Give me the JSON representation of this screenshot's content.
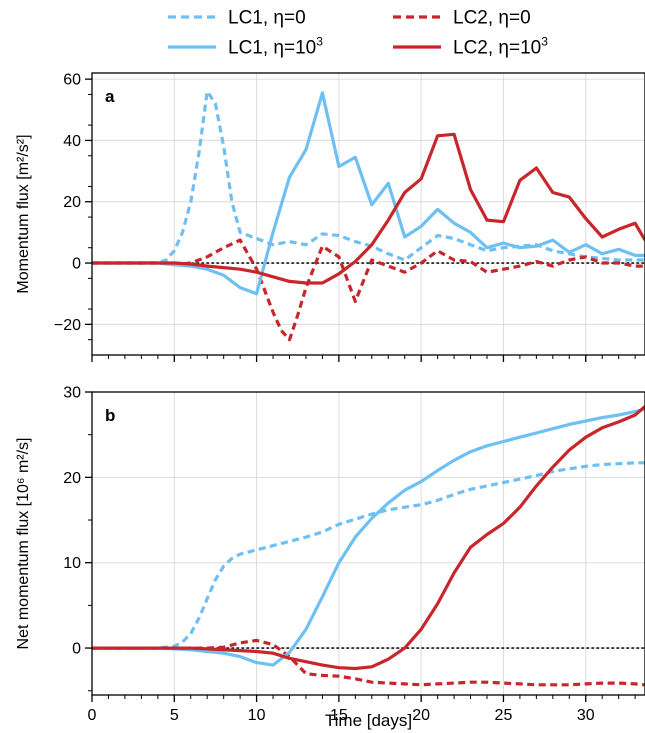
{
  "legend": {
    "entries": [
      {
        "label": "LC1, η=0",
        "color": "#6ec0f3",
        "dash": true
      },
      {
        "label": "LC2, η=0",
        "color": "#c8262b",
        "dash": true
      },
      {
        "label": "LC1, η=10",
        "sup": "3",
        "color": "#6ec0f3",
        "dash": false
      },
      {
        "label": "LC2, η=10",
        "sup": "3",
        "color": "#c8262b",
        "dash": false
      }
    ]
  },
  "xlabel": "Time [days]",
  "chart_data": [
    {
      "type": "line",
      "panel_label": "a",
      "ylabel": "Momentum flux [m²/s²]",
      "xlim": [
        0,
        33.6
      ],
      "ylim": [
        -30,
        62
      ],
      "xticks": [
        "0",
        "5",
        "10",
        "15",
        "20",
        "25",
        "30"
      ],
      "yticks": [
        "−20",
        "0",
        "20",
        "40",
        "60"
      ],
      "ytick_values": [
        -20,
        0,
        20,
        40,
        60
      ],
      "grid": true,
      "zero_line": true,
      "series": [
        {
          "name": "LC1, η=0",
          "color": "#6ec0f3",
          "dash": true,
          "x": [
            0,
            1,
            2,
            3,
            4,
            4.5,
            5,
            5.5,
            6,
            6.5,
            7,
            7.5,
            8,
            8.5,
            9,
            10,
            11,
            12,
            13,
            14,
            15,
            16,
            17,
            18,
            19,
            20,
            21,
            22,
            23,
            24,
            25,
            26,
            27,
            28,
            29,
            30,
            31,
            32,
            33,
            33.6
          ],
          "y": [
            0,
            0,
            0,
            0,
            0,
            1,
            4,
            10,
            20,
            36,
            56,
            52,
            38,
            20,
            10,
            8,
            6,
            7,
            6,
            9.5,
            9,
            7,
            5.5,
            3,
            1,
            5,
            9,
            8,
            6,
            4,
            5,
            5.5,
            6,
            4,
            3,
            2,
            1.5,
            1,
            1,
            1
          ]
        },
        {
          "name": "LC2, η=0",
          "color": "#c8262b",
          "dash": true,
          "x": [
            0,
            1,
            2,
            3,
            4,
            5,
            6,
            7,
            8,
            9,
            10,
            11,
            11.5,
            12,
            12.5,
            13,
            14,
            15,
            16,
            17,
            18,
            19,
            20,
            21,
            22,
            23,
            24,
            25,
            26,
            27,
            28,
            29,
            30,
            31,
            32,
            33,
            33.6
          ],
          "y": [
            0,
            0,
            0,
            0,
            0,
            -0.5,
            0,
            2,
            5,
            7.5,
            -2,
            -16,
            -22,
            -25,
            -17,
            -8,
            5.5,
            2,
            -12.5,
            1,
            -1,
            -3,
            0,
            4,
            1,
            0.5,
            -3,
            -2,
            -1,
            0.5,
            -1,
            1,
            2,
            0,
            0,
            -1,
            -1
          ]
        },
        {
          "name": "LC1, η=10³",
          "color": "#6ec0f3",
          "dash": false,
          "x": [
            0,
            1,
            2,
            3,
            4,
            5,
            6,
            7,
            8,
            9,
            10,
            11,
            12,
            13,
            14,
            15,
            16,
            17,
            18,
            19,
            20,
            21,
            22,
            23,
            24,
            25,
            26,
            27,
            28,
            29,
            30,
            31,
            32,
            33,
            33.6
          ],
          "y": [
            0,
            0,
            0,
            0,
            0,
            -0.5,
            -1,
            -2,
            -4,
            -8,
            -10,
            10,
            28,
            37,
            55.5,
            31.5,
            34.5,
            19,
            26,
            8.5,
            12,
            17.5,
            13,
            10,
            5,
            6.5,
            5,
            5.5,
            7.5,
            3.5,
            6,
            3,
            4.5,
            2.5,
            2.5
          ]
        },
        {
          "name": "LC2, η=10³",
          "color": "#c8262b",
          "dash": false,
          "x": [
            0,
            1,
            2,
            3,
            4,
            5,
            6,
            7,
            8,
            9,
            10,
            11,
            12,
            13,
            14,
            15,
            16,
            17,
            18,
            19,
            20,
            21,
            22,
            23,
            24,
            25,
            26,
            27,
            28,
            29,
            30,
            31,
            32,
            33,
            33.6
          ],
          "y": [
            0,
            0,
            0,
            0,
            0,
            0,
            -0.3,
            -1,
            -1.5,
            -2,
            -3,
            -4.5,
            -6,
            -6.5,
            -6.5,
            -3.5,
            0.5,
            6,
            14,
            23,
            27.5,
            41.5,
            42,
            24,
            14,
            13.5,
            27,
            31,
            23,
            21.5,
            14.5,
            8.5,
            11,
            13,
            7.5
          ]
        }
      ]
    },
    {
      "type": "line",
      "panel_label": "b",
      "ylabel": "Net momentum flux [10⁶ m²/s]",
      "xlim": [
        0,
        33.6
      ],
      "ylim": [
        -5.5,
        30
      ],
      "xticks": [
        "0",
        "5",
        "10",
        "15",
        "20",
        "25",
        "30"
      ],
      "yticks": [
        "0",
        "10",
        "20",
        "30"
      ],
      "ytick_values": [
        0,
        10,
        20,
        30
      ],
      "grid": true,
      "zero_line": true,
      "series": [
        {
          "name": "LC1, η=0",
          "color": "#6ec0f3",
          "dash": true,
          "x": [
            0,
            1,
            2,
            3,
            4,
            5,
            5.5,
            6,
            6.5,
            7,
            7.5,
            8,
            8.5,
            9,
            10,
            11,
            12,
            13,
            14,
            15,
            16,
            17,
            18,
            19,
            20,
            21,
            22,
            23,
            24,
            25,
            26,
            27,
            28,
            29,
            30,
            31,
            32,
            33,
            33.6
          ],
          "y": [
            0,
            0,
            0,
            0,
            0,
            0.2,
            0.7,
            1.7,
            3.5,
            5.8,
            8,
            9.6,
            10.5,
            11,
            11.5,
            12,
            12.5,
            13,
            13.6,
            14.5,
            15.1,
            15.7,
            16.2,
            16.5,
            16.8,
            17.3,
            18,
            18.6,
            19,
            19.4,
            19.8,
            20.2,
            20.7,
            21,
            21.3,
            21.5,
            21.6,
            21.7,
            21.7
          ]
        },
        {
          "name": "LC2, η=0",
          "color": "#c8262b",
          "dash": true,
          "x": [
            0,
            1,
            2,
            3,
            4,
            5,
            6,
            7,
            8,
            9,
            10,
            11,
            12,
            13,
            14,
            15,
            16,
            17,
            18,
            19,
            20,
            21,
            22,
            23,
            24,
            25,
            26,
            27,
            28,
            29,
            30,
            31,
            32,
            33,
            33.6
          ],
          "y": [
            0,
            0,
            0,
            0,
            0,
            0,
            0,
            0,
            0.1,
            0.6,
            0.9,
            0.4,
            -1,
            -3,
            -3.2,
            -3.3,
            -3.6,
            -4,
            -4.1,
            -4.2,
            -4.3,
            -4.2,
            -4.1,
            -4,
            -4,
            -4.1,
            -4.2,
            -4.3,
            -4.3,
            -4.3,
            -4.2,
            -4.1,
            -4.1,
            -4.2,
            -4.3
          ]
        },
        {
          "name": "LC1, η=10³",
          "color": "#6ec0f3",
          "dash": false,
          "x": [
            0,
            1,
            2,
            3,
            4,
            5,
            6,
            7,
            8,
            9,
            10,
            11,
            12,
            13,
            14,
            15,
            16,
            17,
            18,
            19,
            20,
            21,
            22,
            23,
            24,
            25,
            26,
            27,
            28,
            29,
            30,
            31,
            32,
            33,
            33.6
          ],
          "y": [
            0,
            0,
            0,
            0,
            0,
            -0.1,
            -0.2,
            -0.4,
            -0.6,
            -1,
            -1.7,
            -2,
            -0.5,
            2.2,
            6,
            10,
            13,
            15.2,
            17,
            18.5,
            19.5,
            20.8,
            22,
            23,
            23.7,
            24.2,
            24.7,
            25.2,
            25.7,
            26.2,
            26.6,
            27,
            27.3,
            27.7,
            28
          ]
        },
        {
          "name": "LC2, η=10³",
          "color": "#c8262b",
          "dash": false,
          "x": [
            0,
            1,
            2,
            3,
            4,
            5,
            6,
            7,
            8,
            9,
            10,
            11,
            12,
            13,
            14,
            15,
            16,
            17,
            18,
            19,
            20,
            21,
            22,
            23,
            24,
            25,
            26,
            27,
            28,
            29,
            30,
            31,
            32,
            33,
            33.6
          ],
          "y": [
            0,
            0,
            0,
            0,
            0,
            0,
            0,
            -0.1,
            -0.2,
            -0.3,
            -0.4,
            -0.6,
            -1.2,
            -1.6,
            -2,
            -2.3,
            -2.4,
            -2.2,
            -1.3,
            0,
            2.2,
            5.2,
            8.8,
            11.8,
            13.3,
            14.6,
            16.5,
            19,
            21.2,
            23.2,
            24.7,
            25.8,
            26.5,
            27.3,
            28.3
          ]
        }
      ]
    }
  ]
}
